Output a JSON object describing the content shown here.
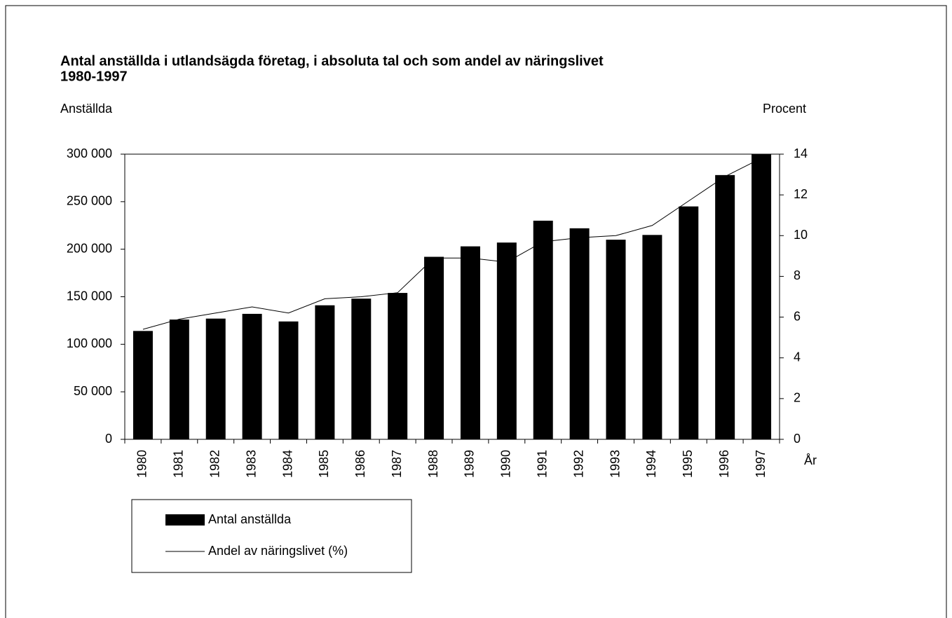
{
  "chart_data": {
    "type": "bar",
    "title": [
      "Antal anställda i utlandsägda företag, i absoluta tal och som andel av näringslivet",
      "1980-1997"
    ],
    "y_label": "Anställda",
    "y2_label": "Procent",
    "x_label": "År",
    "categories": [
      "1980",
      "1981",
      "1982",
      "1983",
      "1984",
      "1985",
      "1986",
      "1987",
      "1988",
      "1989",
      "1990",
      "1991",
      "1992",
      "1993",
      "1994",
      "1995",
      "1996",
      "1997"
    ],
    "series": [
      {
        "name": "Antal anställda",
        "type": "bar",
        "color": "#000000",
        "axis": "y",
        "values": [
          114000,
          126000,
          127000,
          132000,
          124000,
          141000,
          148000,
          154000,
          192000,
          203000,
          207000,
          230000,
          222000,
          210000,
          215000,
          245000,
          278000,
          300000
        ]
      },
      {
        "name": "Andel av näringslivet (%)",
        "type": "line",
        "color": "#000000",
        "axis": "y2",
        "values": [
          5.4,
          5.9,
          6.2,
          6.5,
          6.2,
          6.9,
          7.0,
          7.2,
          8.9,
          8.9,
          8.7,
          9.7,
          9.9,
          10.0,
          10.5,
          11.7,
          12.9,
          13.8
        ]
      }
    ],
    "ylim": [
      0,
      300000
    ],
    "yticks": [
      0,
      {
        "value": 50000,
        "label": "50 000"
      },
      {
        "value": 100000,
        "label": "100 000"
      },
      {
        "value": 150000,
        "label": "150 000"
      },
      {
        "value": 200000,
        "label": "200 000"
      },
      {
        "value": 250000,
        "label": "250 000"
      },
      {
        "value": 300000,
        "label": "300 000"
      }
    ],
    "y2lim": [
      0,
      14
    ],
    "y2ticks": [
      0,
      2,
      4,
      6,
      8,
      10,
      12,
      14
    ],
    "grid": false
  }
}
